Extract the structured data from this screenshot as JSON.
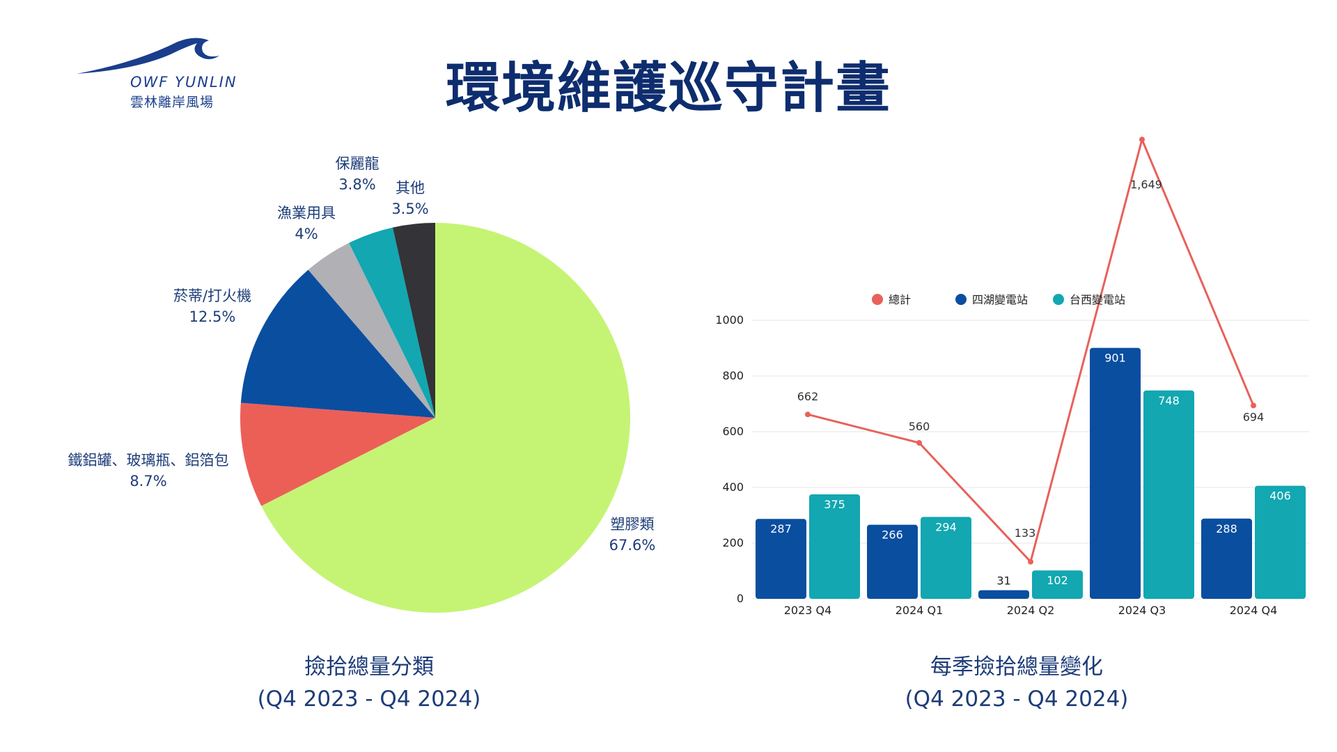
{
  "logo": {
    "name_en": "OWF YUNLIN",
    "name_zh": "雲林離岸風場"
  },
  "title": "環境維護巡守計畫",
  "colors": {
    "title": "#0e2d6e",
    "navy": "#0a4ea0",
    "teal": "#12a7b1",
    "red": "#e8615a",
    "lime": "#c5f474",
    "gray": "#b0b0b5",
    "dark": "#333338"
  },
  "chart_data": [
    {
      "type": "pie",
      "caption_line1": "撿拾總量分類",
      "caption_line2": "(Q4 2023 - Q4 2024)",
      "slices": [
        {
          "label": "塑膠類",
          "value_text": "67.6%",
          "value": 67.6,
          "color": "#c5f474"
        },
        {
          "label": "鐵鋁罐、玻璃瓶、鋁箔包",
          "value_text": "8.7%",
          "value": 8.7,
          "color": "#ec5f57"
        },
        {
          "label": "菸蒂/打火機",
          "value_text": "12.5%",
          "value": 12.5,
          "color": "#0a4ea0"
        },
        {
          "label": "漁業用具",
          "value_text": "4%",
          "value": 4,
          "color": "#b0b0b5"
        },
        {
          "label": "保麗龍",
          "value_text": "3.8%",
          "value": 3.8,
          "color": "#12a7b1"
        },
        {
          "label": "其他",
          "value_text": "3.5%",
          "value": 3.5,
          "color": "#333338"
        }
      ]
    },
    {
      "type": "bar",
      "caption_line1": "每季撿拾總量變化",
      "caption_line2": "(Q4 2023 - Q4 2024)",
      "categories": [
        "2023 Q4",
        "2024 Q1",
        "2024 Q2",
        "2024 Q3",
        "2024 Q4"
      ],
      "ylim": [
        0,
        1000
      ],
      "yticks": [
        0,
        200,
        400,
        600,
        800,
        1000
      ],
      "grid": true,
      "legend_position": "top",
      "series": [
        {
          "name": "總計",
          "kind": "line",
          "color": "#e8615a",
          "values": [
            662,
            560,
            133,
            1649,
            694
          ],
          "labels": [
            "662",
            "560",
            "133",
            "1,649",
            "694"
          ]
        },
        {
          "name": "四湖變電站",
          "kind": "bar",
          "color": "#0a4ea0",
          "values": [
            287,
            266,
            31,
            901,
            288
          ]
        },
        {
          "name": "台西變電站",
          "kind": "bar",
          "color": "#12a7b1",
          "values": [
            375,
            294,
            102,
            748,
            406
          ]
        }
      ]
    }
  ]
}
